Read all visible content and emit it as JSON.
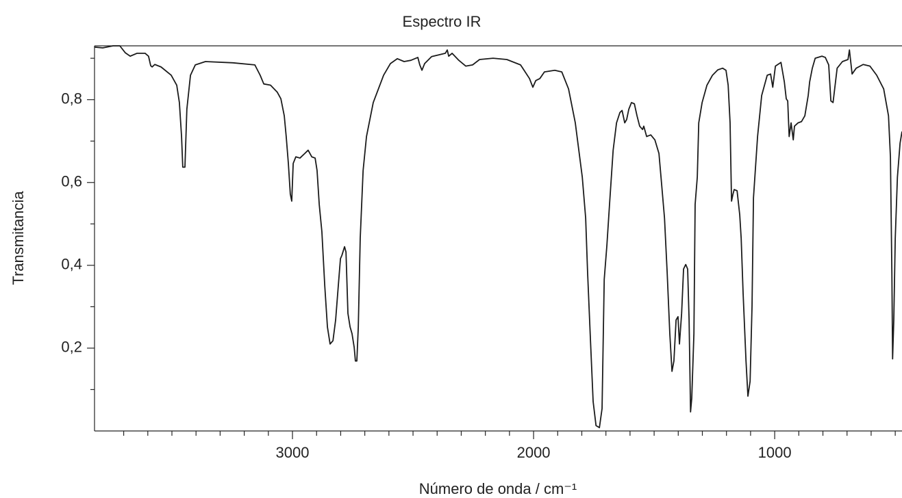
{
  "chart_data": {
    "type": "line",
    "title": "Espectro IR",
    "x_label": "Número de onda / cm⁻¹",
    "y_label": "Transmitancia",
    "xlim": [
      3821,
      472
    ],
    "ylim": [
      0,
      0.93
    ],
    "xticks": [
      3000,
      2000,
      1000
    ],
    "xminorticks": [
      3700,
      3600,
      3500,
      3400,
      3300,
      3200,
      3100,
      2900,
      2800,
      2700,
      2600,
      2500,
      2400,
      2300,
      2200,
      2100,
      1900,
      1800,
      1700,
      1600,
      1500,
      1400,
      1300,
      1200,
      1100,
      900,
      800,
      700,
      600,
      500
    ],
    "yticks": [
      {
        "value": 0.2,
        "label": "0,2"
      },
      {
        "value": 0.4,
        "label": "0,4"
      },
      {
        "value": 0.6,
        "label": "0,6"
      },
      {
        "value": 0.8,
        "label": "0,8"
      }
    ],
    "yminorticks": [
      0.1,
      0.3,
      0.5,
      0.7,
      0.9
    ],
    "color": "#1a1a1a",
    "x": [
      3821,
      3787,
      3744,
      3716,
      3693,
      3673,
      3645,
      3611,
      3597,
      3588,
      3582,
      3571,
      3545,
      3503,
      3480,
      3469,
      3460,
      3455,
      3446,
      3438,
      3423,
      3403,
      3361,
      3247,
      3156,
      3134,
      3119,
      3091,
      3063,
      3048,
      3034,
      3026,
      3017,
      3009,
      3003,
      2997,
      2986,
      2969,
      2949,
      2935,
      2920,
      2906,
      2898,
      2889,
      2878,
      2866,
      2855,
      2844,
      2832,
      2821,
      2810,
      2801,
      2795,
      2784,
      2778,
      2770,
      2761,
      2753,
      2744,
      2739,
      2733,
      2727,
      2719,
      2707,
      2693,
      2665,
      2622,
      2594,
      2565,
      2537,
      2509,
      2480,
      2472,
      2463,
      2452,
      2423,
      2395,
      2366,
      2358,
      2352,
      2338,
      2310,
      2281,
      2253,
      2224,
      2168,
      2111,
      2054,
      2017,
      2003,
      1991,
      1974,
      1955,
      1912,
      1883,
      1855,
      1827,
      1798,
      1784,
      1776,
      1764,
      1753,
      1741,
      1727,
      1716,
      1707,
      1696,
      1685,
      1670,
      1656,
      1642,
      1633,
      1622,
      1614,
      1605,
      1594,
      1582,
      1571,
      1560,
      1548,
      1543,
      1531,
      1514,
      1497,
      1480,
      1469,
      1457,
      1446,
      1435,
      1426,
      1418,
      1409,
      1401,
      1395,
      1386,
      1378,
      1369,
      1361,
      1355,
      1349,
      1344,
      1335,
      1330,
      1321,
      1315,
      1301,
      1281,
      1258,
      1236,
      1216,
      1202,
      1193,
      1185,
      1179,
      1173,
      1168,
      1156,
      1145,
      1139,
      1131,
      1119,
      1111,
      1102,
      1094,
      1088,
      1071,
      1054,
      1031,
      1017,
      1008,
      997,
      974,
      960,
      952,
      946,
      940,
      932,
      923,
      918,
      903,
      889,
      875,
      861,
      855,
      844,
      832,
      804,
      790,
      776,
      767,
      758,
      741,
      719,
      696,
      690,
      679,
      662,
      633,
      605,
      577,
      548,
      528,
      520,
      514,
      511,
      506,
      500,
      491,
      480,
      472
    ],
    "values": [
      0.927,
      0.925,
      0.93,
      0.93,
      0.913,
      0.905,
      0.912,
      0.912,
      0.905,
      0.882,
      0.879,
      0.885,
      0.879,
      0.859,
      0.835,
      0.793,
      0.711,
      0.637,
      0.637,
      0.777,
      0.859,
      0.884,
      0.892,
      0.889,
      0.884,
      0.859,
      0.838,
      0.835,
      0.818,
      0.802,
      0.761,
      0.711,
      0.646,
      0.572,
      0.555,
      0.646,
      0.662,
      0.659,
      0.67,
      0.678,
      0.662,
      0.659,
      0.629,
      0.547,
      0.481,
      0.35,
      0.251,
      0.21,
      0.218,
      0.268,
      0.35,
      0.416,
      0.424,
      0.445,
      0.432,
      0.284,
      0.251,
      0.235,
      0.202,
      0.169,
      0.169,
      0.251,
      0.465,
      0.629,
      0.711,
      0.793,
      0.859,
      0.887,
      0.899,
      0.892,
      0.895,
      0.902,
      0.884,
      0.871,
      0.887,
      0.904,
      0.908,
      0.912,
      0.92,
      0.905,
      0.912,
      0.895,
      0.881,
      0.884,
      0.897,
      0.9,
      0.897,
      0.884,
      0.851,
      0.83,
      0.846,
      0.851,
      0.867,
      0.871,
      0.867,
      0.826,
      0.744,
      0.613,
      0.514,
      0.383,
      0.218,
      0.071,
      0.013,
      0.008,
      0.054,
      0.366,
      0.448,
      0.547,
      0.678,
      0.744,
      0.769,
      0.774,
      0.744,
      0.752,
      0.777,
      0.793,
      0.79,
      0.761,
      0.736,
      0.728,
      0.736,
      0.711,
      0.715,
      0.703,
      0.67,
      0.596,
      0.514,
      0.383,
      0.235,
      0.144,
      0.169,
      0.268,
      0.276,
      0.21,
      0.284,
      0.391,
      0.402,
      0.391,
      0.268,
      0.046,
      0.079,
      0.235,
      0.547,
      0.613,
      0.744,
      0.793,
      0.835,
      0.859,
      0.872,
      0.876,
      0.871,
      0.835,
      0.744,
      0.555,
      0.572,
      0.583,
      0.58,
      0.522,
      0.465,
      0.333,
      0.169,
      0.084,
      0.12,
      0.301,
      0.563,
      0.711,
      0.81,
      0.859,
      0.862,
      0.83,
      0.881,
      0.89,
      0.843,
      0.802,
      0.797,
      0.711,
      0.744,
      0.703,
      0.736,
      0.744,
      0.747,
      0.761,
      0.81,
      0.843,
      0.876,
      0.9,
      0.905,
      0.902,
      0.884,
      0.797,
      0.793,
      0.876,
      0.892,
      0.897,
      0.92,
      0.862,
      0.876,
      0.885,
      0.881,
      0.859,
      0.826,
      0.761,
      0.662,
      0.383,
      0.174,
      0.268,
      0.465,
      0.613,
      0.695,
      0.723
    ]
  }
}
